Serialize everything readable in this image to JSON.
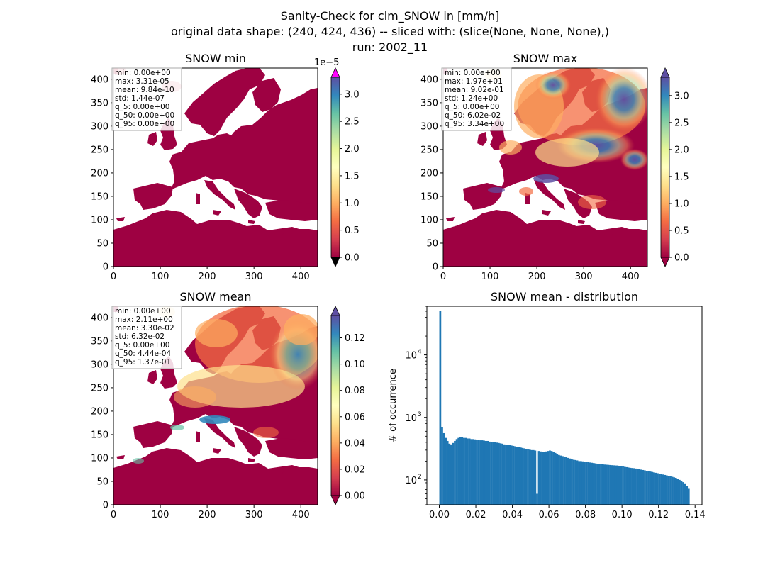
{
  "figure": {
    "title_line1": "Sanity-Check for clm_SNOW in [mm/h]",
    "title_line2": "original data shape: (240, 424, 436) -- sliced with: (slice(None, None, None),)",
    "title_line3": "run: 2002_11"
  },
  "colors": {
    "land": "#9e0142",
    "sea": "#ffffff",
    "bar": "#1f77b4",
    "spectral": [
      "#9e0142",
      "#d53e4f",
      "#f46d43",
      "#fdae61",
      "#fee08b",
      "#ffffbf",
      "#e6f598",
      "#abdda4",
      "#66c2a5",
      "#3288bd",
      "#5e4fa2"
    ],
    "over_color_min": "#ff00ff",
    "under_color_min": "#000000"
  },
  "chart_data": [
    {
      "type": "heatmap",
      "title": "SNOW min",
      "xlim": [
        0,
        436
      ],
      "ylim": [
        0,
        424
      ],
      "xticks": [
        "0",
        "100",
        "200",
        "300",
        "400"
      ],
      "yticks": [
        "0",
        "50",
        "100",
        "150",
        "200",
        "250",
        "300",
        "350",
        "400"
      ],
      "colorbar": {
        "ticks": [
          "0.0",
          "0.5",
          "1.0",
          "1.5",
          "2.0",
          "2.5",
          "3.0"
        ],
        "exponent": "1e−5",
        "range": [
          0,
          3.31e-05
        ]
      },
      "stats": [
        "min: 0.00e+00",
        "max: 3.31e-05",
        "mean: 9.84e-10",
        "std: 1.44e-07",
        "q_5: 0.00e+00",
        "q_50: 0.00e+00",
        "q_95: 0.00e+00"
      ]
    },
    {
      "type": "heatmap",
      "title": "SNOW max",
      "xlim": [
        0,
        436
      ],
      "ylim": [
        0,
        424
      ],
      "xticks": [
        "0",
        "100",
        "200",
        "300",
        "400"
      ],
      "yticks": [
        "0",
        "50",
        "100",
        "150",
        "200",
        "250",
        "300",
        "350",
        "400"
      ],
      "colorbar": {
        "ticks": [
          "0.0",
          "0.5",
          "1.0",
          "1.5",
          "2.0",
          "2.5",
          "3.0"
        ],
        "range": [
          0,
          3.34
        ]
      },
      "stats": [
        "min: 0.00e+00",
        "max: 1.97e+01",
        "mean: 9.02e-01",
        "std: 1.24e+00",
        "q_5: 0.00e+00",
        "q_50: 6.02e-02",
        "q_95: 3.34e+00"
      ]
    },
    {
      "type": "heatmap",
      "title": "SNOW mean",
      "xlim": [
        0,
        436
      ],
      "ylim": [
        0,
        424
      ],
      "xticks": [
        "0",
        "100",
        "200",
        "300",
        "400"
      ],
      "yticks": [
        "0",
        "50",
        "100",
        "150",
        "200",
        "250",
        "300",
        "350",
        "400"
      ],
      "colorbar": {
        "ticks": [
          "0.00",
          "0.02",
          "0.04",
          "0.06",
          "0.08",
          "0.10",
          "0.12"
        ],
        "range": [
          0,
          0.137
        ]
      },
      "stats": [
        "min: 0.00e+00",
        "max: 2.11e+00",
        "mean: 3.30e-02",
        "std: 6.32e-02",
        "q_5: 0.00e+00",
        "q_50: 4.44e-04",
        "q_95: 1.37e-01"
      ]
    },
    {
      "type": "bar",
      "title": "SNOW mean - distribution",
      "ylabel": "# of occurrence",
      "xlabel": "",
      "yscale": "log",
      "xlim": [
        -0.0068,
        0.1438
      ],
      "ylim": [
        40,
        60000
      ],
      "xticks": [
        "0.00",
        "0.02",
        "0.04",
        "0.06",
        "0.08",
        "0.10",
        "0.12",
        "0.14"
      ],
      "yticks": [
        "10",
        "10",
        "10"
      ],
      "ytick_exponents": [
        "2",
        "3",
        "4"
      ],
      "bin_range": [
        0,
        0.137
      ],
      "bin_count": 137,
      "counts": [
        50000,
        700,
        560,
        470,
        420,
        380,
        370,
        390,
        420,
        450,
        470,
        490,
        480,
        470,
        470,
        460,
        460,
        450,
        450,
        445,
        440,
        440,
        430,
        430,
        425,
        420,
        420,
        410,
        405,
        400,
        400,
        395,
        390,
        385,
        380,
        370,
        365,
        360,
        360,
        355,
        350,
        345,
        340,
        335,
        330,
        325,
        320,
        315,
        310,
        305,
        300,
        300,
        295,
        60,
        290,
        285,
        280,
        280,
        285,
        290,
        295,
        290,
        280,
        270,
        260,
        250,
        245,
        240,
        235,
        230,
        225,
        220,
        215,
        210,
        208,
        205,
        200,
        200,
        198,
        196,
        194,
        192,
        190,
        188,
        186,
        184,
        182,
        180,
        180,
        178,
        176,
        175,
        174,
        173,
        172,
        171,
        170,
        170,
        168,
        166,
        164,
        162,
        160,
        158,
        156,
        155,
        154,
        152,
        150,
        148,
        146,
        144,
        142,
        140,
        138,
        136,
        134,
        132,
        130,
        128,
        126,
        124,
        122,
        120,
        118,
        116,
        114,
        112,
        110,
        108,
        104,
        100,
        96,
        92,
        88,
        80,
        72
      ]
    }
  ]
}
